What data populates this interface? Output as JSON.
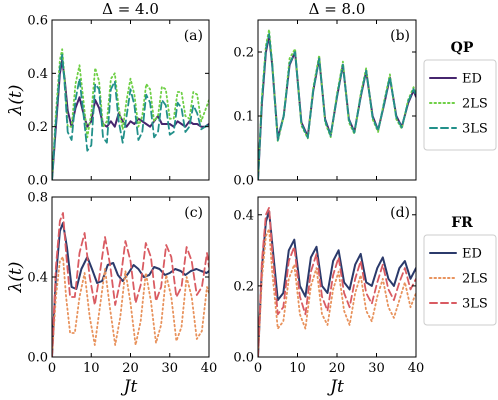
{
  "chart_data": [
    {
      "id": "a",
      "type": "line",
      "title": "Δ = 4.0",
      "panel_label": "(a)",
      "ylabel": "λ(t)",
      "xlabel": "",
      "xlim": [
        0,
        40
      ],
      "ylim": [
        0,
        0.6
      ],
      "xticks": [
        0,
        10,
        20,
        30,
        40
      ],
      "xtick_labels": [
        "",
        "",
        "",
        "",
        ""
      ],
      "yticks": [
        0,
        0.2,
        0.4,
        0.6
      ],
      "ytick_labels": [
        "0.0",
        "0.2",
        "0.4",
        "0.6"
      ],
      "series": [
        {
          "name": "ED",
          "color": "#46256e",
          "style": "solid",
          "x": [
            0,
            1,
            2,
            2.6,
            3.2,
            4,
            5,
            6,
            7,
            8,
            9,
            10,
            11,
            12,
            13,
            14,
            15,
            16,
            17,
            18,
            19,
            20,
            21,
            22,
            23,
            24,
            25,
            26,
            27,
            28,
            29,
            30,
            31,
            32,
            33,
            34,
            35,
            36,
            37,
            38,
            39,
            40
          ],
          "y": [
            0,
            0.2,
            0.4,
            0.45,
            0.38,
            0.26,
            0.2,
            0.27,
            0.31,
            0.25,
            0.2,
            0.22,
            0.3,
            0.27,
            0.21,
            0.2,
            0.22,
            0.2,
            0.25,
            0.22,
            0.2,
            0.22,
            0.21,
            0.23,
            0.22,
            0.21,
            0.2,
            0.22,
            0.24,
            0.21,
            0.21,
            0.21,
            0.2,
            0.22,
            0.21,
            0.2,
            0.22,
            0.21,
            0.21,
            0.2,
            0.2,
            0.21
          ]
        },
        {
          "name": "2LS",
          "color": "#6ecf45",
          "style": "dotted",
          "x": [
            0,
            1,
            2,
            2.6,
            3.2,
            4,
            5,
            6,
            7,
            8,
            9,
            10,
            11,
            12,
            13,
            14,
            15,
            16,
            17,
            18,
            19,
            20,
            21,
            22,
            23,
            24,
            25,
            26,
            27,
            28,
            29,
            30,
            31,
            32,
            33,
            34,
            35,
            36,
            37,
            38,
            39,
            40
          ],
          "y": [
            0,
            0.25,
            0.45,
            0.49,
            0.38,
            0.2,
            0.2,
            0.36,
            0.43,
            0.3,
            0.16,
            0.25,
            0.42,
            0.37,
            0.2,
            0.22,
            0.38,
            0.4,
            0.27,
            0.19,
            0.3,
            0.38,
            0.32,
            0.2,
            0.24,
            0.36,
            0.34,
            0.22,
            0.24,
            0.35,
            0.34,
            0.23,
            0.23,
            0.33,
            0.33,
            0.24,
            0.23,
            0.33,
            0.32,
            0.22,
            0.26,
            0.3
          ]
        },
        {
          "name": "3LS",
          "color": "#22908a",
          "style": "dashed",
          "x": [
            0,
            1,
            2,
            2.6,
            3.2,
            4,
            5,
            6,
            7,
            8,
            9,
            10,
            11,
            12,
            13,
            14,
            15,
            16,
            17,
            18,
            19,
            20,
            21,
            22,
            23,
            24,
            25,
            26,
            27,
            28,
            29,
            30,
            31,
            32,
            33,
            34,
            35,
            36,
            37,
            38,
            39,
            40
          ],
          "y": [
            0,
            0.22,
            0.42,
            0.47,
            0.36,
            0.18,
            0.15,
            0.3,
            0.38,
            0.25,
            0.11,
            0.13,
            0.36,
            0.34,
            0.16,
            0.14,
            0.34,
            0.37,
            0.22,
            0.14,
            0.24,
            0.34,
            0.28,
            0.15,
            0.18,
            0.32,
            0.29,
            0.16,
            0.18,
            0.3,
            0.28,
            0.17,
            0.18,
            0.29,
            0.27,
            0.18,
            0.2,
            0.28,
            0.25,
            0.19,
            0.2,
            0.21
          ]
        }
      ]
    },
    {
      "id": "b",
      "type": "line",
      "title": "Δ = 8.0",
      "panel_label": "(b)",
      "xlabel": "",
      "xlim": [
        0,
        40
      ],
      "ylim": [
        0,
        0.25
      ],
      "xticks": [
        0,
        10,
        20,
        30,
        40
      ],
      "xtick_labels": [
        "",
        "",
        "",
        "",
        ""
      ],
      "yticks": [
        0,
        0.1,
        0.2
      ],
      "ytick_labels": [
        "0.0",
        "0.1",
        "0.2"
      ],
      "series": [
        {
          "name": "ED",
          "color": "#46256e",
          "style": "solid",
          "x": [
            0,
            1,
            2,
            2.8,
            3.6,
            5,
            6.5,
            8,
            9.4,
            11,
            12.6,
            14,
            15.5,
            17,
            18.4,
            20,
            21.5,
            23,
            24.4,
            26,
            27.4,
            29,
            30.4,
            32,
            33.4,
            35,
            36.4,
            38,
            39.4,
            40
          ],
          "y": [
            0,
            0.12,
            0.2,
            0.225,
            0.18,
            0.065,
            0.1,
            0.18,
            0.2,
            0.09,
            0.068,
            0.14,
            0.19,
            0.095,
            0.07,
            0.13,
            0.18,
            0.095,
            0.075,
            0.13,
            0.17,
            0.1,
            0.078,
            0.12,
            0.16,
            0.1,
            0.083,
            0.12,
            0.14,
            0.13
          ]
        },
        {
          "name": "2LS",
          "color": "#6ecf45",
          "style": "dotted",
          "x": [
            0,
            1,
            2,
            2.8,
            3.6,
            5,
            6.5,
            8,
            9.4,
            11,
            12.6,
            14,
            15.5,
            17,
            18.4,
            20,
            21.5,
            23,
            24.4,
            26,
            27.4,
            29,
            30.4,
            32,
            33.4,
            35,
            36.4,
            38,
            39.4,
            40
          ],
          "y": [
            0,
            0.13,
            0.21,
            0.235,
            0.185,
            0.06,
            0.1,
            0.19,
            0.205,
            0.085,
            0.065,
            0.145,
            0.195,
            0.09,
            0.067,
            0.135,
            0.185,
            0.09,
            0.072,
            0.135,
            0.175,
            0.095,
            0.075,
            0.125,
            0.165,
            0.095,
            0.08,
            0.125,
            0.145,
            0.135
          ]
        },
        {
          "name": "3LS",
          "color": "#22908a",
          "style": "dashed",
          "x": [
            0,
            1,
            2,
            2.8,
            3.6,
            5,
            6.5,
            8,
            9.4,
            11,
            12.6,
            14,
            15.5,
            17,
            18.4,
            20,
            21.5,
            23,
            24.4,
            26,
            27.4,
            29,
            30.4,
            32,
            33.4,
            35,
            36.4,
            38,
            39.4,
            40
          ],
          "y": [
            0,
            0.125,
            0.205,
            0.228,
            0.18,
            0.062,
            0.1,
            0.182,
            0.2,
            0.088,
            0.066,
            0.141,
            0.19,
            0.093,
            0.069,
            0.131,
            0.18,
            0.094,
            0.074,
            0.131,
            0.171,
            0.098,
            0.077,
            0.122,
            0.161,
            0.098,
            0.082,
            0.122,
            0.142,
            0.132
          ]
        }
      ]
    },
    {
      "id": "c",
      "type": "line",
      "panel_label": "(c)",
      "ylabel": "λ(t)",
      "xlabel": "Jt",
      "xlim": [
        0,
        40
      ],
      "ylim": [
        0,
        0.8
      ],
      "xticks": [
        0,
        10,
        20,
        30,
        40
      ],
      "xtick_labels": [
        "0",
        "10",
        "20",
        "30",
        "40"
      ],
      "yticks": [
        0,
        0.4,
        0.8
      ],
      "ytick_labels": [
        "0.0",
        "0.4",
        "0.8"
      ],
      "series": [
        {
          "name": "ED",
          "color": "#2b3a6b",
          "style": "solid",
          "x": [
            0,
            1,
            2,
            2.8,
            3.8,
            5,
            6.2,
            7.5,
            9,
            10.2,
            11.5,
            12.8,
            14.2,
            15.6,
            16.8,
            18,
            19.5,
            20.8,
            22,
            23.4,
            24.8,
            26,
            27.4,
            28.8,
            30,
            31.4,
            32.8,
            34,
            35.4,
            36.8,
            38,
            39.4,
            40
          ],
          "y": [
            0,
            0.4,
            0.63,
            0.67,
            0.55,
            0.35,
            0.34,
            0.44,
            0.5,
            0.44,
            0.37,
            0.38,
            0.46,
            0.47,
            0.41,
            0.38,
            0.42,
            0.46,
            0.44,
            0.4,
            0.41,
            0.45,
            0.44,
            0.41,
            0.42,
            0.44,
            0.43,
            0.41,
            0.43,
            0.44,
            0.43,
            0.42,
            0.43
          ]
        },
        {
          "name": "2LS",
          "color": "#e8925c",
          "style": "dotted",
          "x": [
            0,
            1,
            2,
            2.8,
            3.6,
            4.6,
            5.8,
            7,
            8.3,
            9.6,
            10.9,
            12.2,
            13.5,
            14.8,
            16.1,
            17.4,
            18.7,
            20,
            21.3,
            22.6,
            23.9,
            25.2,
            26.5,
            27.8,
            29.1,
            30.4,
            31.7,
            33,
            34.3,
            35.6,
            36.9,
            38.2,
            39.5,
            40
          ],
          "y": [
            0,
            0.3,
            0.48,
            0.5,
            0.3,
            0.12,
            0.12,
            0.3,
            0.42,
            0.2,
            0.06,
            0.25,
            0.44,
            0.24,
            0.06,
            0.2,
            0.43,
            0.27,
            0.06,
            0.18,
            0.42,
            0.28,
            0.07,
            0.16,
            0.41,
            0.3,
            0.08,
            0.15,
            0.4,
            0.3,
            0.09,
            0.13,
            0.35,
            0.32
          ]
        },
        {
          "name": "3LS",
          "color": "#d95b62",
          "style": "dashed",
          "x": [
            0,
            1,
            2,
            2.8,
            3.6,
            4.6,
            5.8,
            7,
            8.3,
            9.6,
            10.9,
            12.2,
            13.5,
            14.8,
            16.1,
            17.4,
            18.7,
            20,
            21.3,
            22.6,
            23.9,
            25.2,
            26.5,
            27.8,
            29.1,
            30.4,
            31.7,
            33,
            34.3,
            35.6,
            36.9,
            38.2,
            39.5,
            40
          ],
          "y": [
            0,
            0.45,
            0.68,
            0.72,
            0.52,
            0.3,
            0.3,
            0.52,
            0.62,
            0.4,
            0.26,
            0.42,
            0.6,
            0.46,
            0.26,
            0.38,
            0.58,
            0.48,
            0.27,
            0.36,
            0.57,
            0.5,
            0.28,
            0.35,
            0.56,
            0.5,
            0.3,
            0.35,
            0.55,
            0.48,
            0.31,
            0.35,
            0.52,
            0.45
          ]
        }
      ]
    },
    {
      "id": "d",
      "type": "line",
      "panel_label": "(d)",
      "xlabel": "Jt",
      "xlim": [
        0,
        40
      ],
      "ylim": [
        0,
        0.45
      ],
      "xticks": [
        0,
        10,
        20,
        30,
        40
      ],
      "xtick_labels": [
        "0",
        "10",
        "20",
        "30",
        "40"
      ],
      "yticks": [
        0,
        0.2,
        0.4
      ],
      "ytick_labels": [
        "0.0",
        "0.2",
        "0.4"
      ],
      "series": [
        {
          "name": "ED",
          "color": "#2b3a6b",
          "style": "solid",
          "x": [
            0,
            1,
            2,
            2.8,
            3.6,
            5,
            6.4,
            7.8,
            9.2,
            10.6,
            12,
            13.4,
            14.8,
            16.2,
            17.6,
            19,
            20.4,
            21.8,
            23.2,
            24.6,
            26,
            27.4,
            28.8,
            30.2,
            31.6,
            33,
            34.4,
            35.8,
            37.2,
            38.6,
            40
          ],
          "y": [
            0,
            0.25,
            0.38,
            0.41,
            0.32,
            0.16,
            0.18,
            0.3,
            0.33,
            0.2,
            0.17,
            0.28,
            0.31,
            0.2,
            0.18,
            0.27,
            0.3,
            0.21,
            0.19,
            0.26,
            0.29,
            0.21,
            0.2,
            0.25,
            0.28,
            0.22,
            0.2,
            0.25,
            0.27,
            0.22,
            0.25
          ]
        },
        {
          "name": "2LS",
          "color": "#e8925c",
          "style": "dotted",
          "x": [
            0,
            1,
            2,
            2.8,
            3.6,
            5,
            6.4,
            7.8,
            9.2,
            10.6,
            12,
            13.4,
            14.8,
            16.2,
            17.6,
            19,
            20.4,
            21.8,
            23.2,
            24.6,
            26,
            27.4,
            28.8,
            30.2,
            31.6,
            33,
            34.4,
            35.8,
            37.2,
            38.6,
            40
          ],
          "y": [
            0,
            0.22,
            0.34,
            0.36,
            0.24,
            0.08,
            0.1,
            0.22,
            0.26,
            0.12,
            0.08,
            0.2,
            0.25,
            0.12,
            0.09,
            0.19,
            0.24,
            0.13,
            0.09,
            0.18,
            0.23,
            0.13,
            0.1,
            0.17,
            0.22,
            0.14,
            0.11,
            0.16,
            0.21,
            0.14,
            0.18
          ]
        },
        {
          "name": "3LS",
          "color": "#d95b62",
          "style": "dashed",
          "x": [
            0,
            1,
            2,
            2.8,
            3.6,
            5,
            6.4,
            7.8,
            9.2,
            10.6,
            12,
            13.4,
            14.8,
            16.2,
            17.6,
            19,
            20.4,
            21.8,
            23.2,
            24.6,
            26,
            27.4,
            28.8,
            30.2,
            31.6,
            33,
            34.4,
            35.8,
            37.2,
            38.6,
            40
          ],
          "y": [
            0,
            0.27,
            0.4,
            0.42,
            0.3,
            0.12,
            0.14,
            0.27,
            0.31,
            0.17,
            0.12,
            0.24,
            0.29,
            0.17,
            0.13,
            0.23,
            0.28,
            0.18,
            0.14,
            0.22,
            0.27,
            0.18,
            0.15,
            0.21,
            0.26,
            0.19,
            0.16,
            0.21,
            0.25,
            0.19,
            0.22
          ]
        }
      ]
    }
  ],
  "legends": [
    {
      "title": "QP",
      "entries": [
        {
          "label": "ED",
          "color": "#46256e",
          "style": "solid"
        },
        {
          "label": "2LS",
          "color": "#6ecf45",
          "style": "dotted"
        },
        {
          "label": "3LS",
          "color": "#22908a",
          "style": "dashed"
        }
      ]
    },
    {
      "title": "FR",
      "entries": [
        {
          "label": "ED",
          "color": "#2b3a6b",
          "style": "solid"
        },
        {
          "label": "2LS",
          "color": "#e8925c",
          "style": "dotted"
        },
        {
          "label": "3LS",
          "color": "#d95b62",
          "style": "dashed"
        }
      ]
    }
  ]
}
